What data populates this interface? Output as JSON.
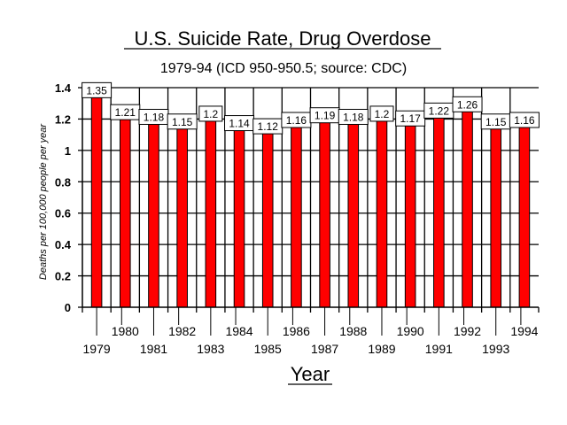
{
  "chart_data": {
    "type": "bar",
    "title": "U.S. Suicide Rate, Drug Overdose",
    "subtitle": "1979-94 (ICD 950-950.5; source: CDC)",
    "xlabel": "Year",
    "ylabel": "Deaths per 100,000 people per year",
    "categories": [
      "1979",
      "1980",
      "1981",
      "1982",
      "1983",
      "1984",
      "1985",
      "1986",
      "1987",
      "1988",
      "1989",
      "1990",
      "1991",
      "1992",
      "1993",
      "1994"
    ],
    "values": [
      1.35,
      1.21,
      1.18,
      1.15,
      1.2,
      1.14,
      1.12,
      1.16,
      1.19,
      1.18,
      1.2,
      1.17,
      1.22,
      1.26,
      1.15,
      1.16
    ],
    "data_labels": [
      "1.35",
      "1.21",
      "1.18",
      "1.15",
      "1.2",
      "1.14",
      "1.12",
      "1.16",
      "1.19",
      "1.18",
      "1.2",
      "1.17",
      "1.22",
      "1.26",
      "1.15",
      "1.16"
    ],
    "ylim": [
      0,
      1.4
    ],
    "yticks": [
      0,
      0.2,
      0.4,
      0.6,
      0.8,
      1,
      1.2,
      1.4
    ],
    "ytick_labels": [
      "0",
      "0.2",
      "0.4",
      "0.6",
      "0.8",
      "1",
      "1.2",
      "1.4"
    ],
    "grid": "horizontal",
    "bar_color": "#ff0000",
    "bar_outline_color": "#000000"
  }
}
